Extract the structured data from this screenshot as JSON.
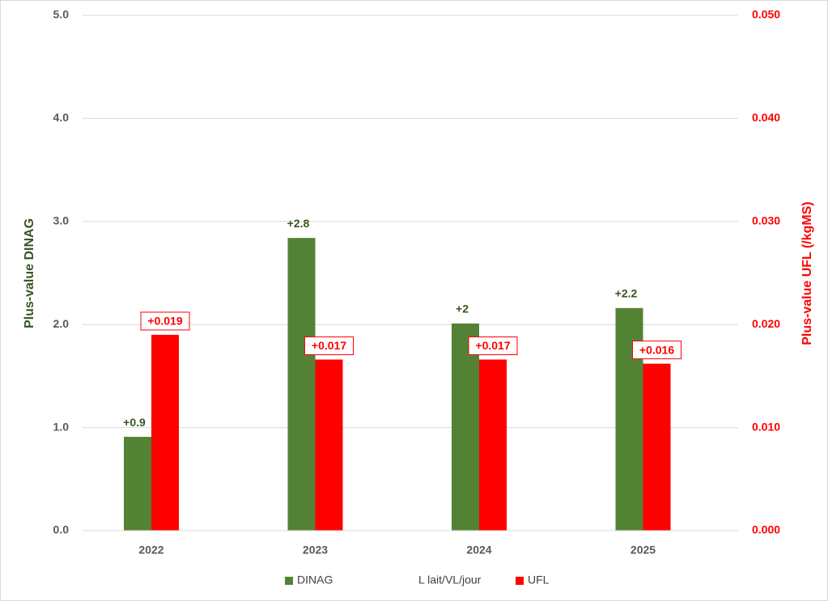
{
  "chart_data": {
    "type": "bar",
    "categories": [
      "2022",
      "2023",
      "2024",
      "2025"
    ],
    "y_label": "Plus-value DINAG",
    "y2_label": "Plus-value UFL (/kgMS)",
    "ylim": [
      0,
      5
    ],
    "yticks": [
      {
        "value": 0,
        "label": "0.0"
      },
      {
        "value": 1,
        "label": "1.0"
      },
      {
        "value": 2,
        "label": "2.0"
      },
      {
        "value": 3,
        "label": "3.0"
      },
      {
        "value": 4,
        "label": "4.0"
      },
      {
        "value": 5,
        "label": "5.0"
      }
    ],
    "y2lim": [
      0,
      0.05
    ],
    "y2ticks": [
      {
        "value": 0,
        "label": "0.000"
      },
      {
        "value": 0.01,
        "label": "0.010"
      },
      {
        "value": 0.02,
        "label": "0.020"
      },
      {
        "value": 0.03,
        "label": "0.030"
      },
      {
        "value": 0.04,
        "label": "0.040"
      },
      {
        "value": 0.05,
        "label": "0.050"
      }
    ],
    "grid": true,
    "legend": "bottom",
    "series": [
      {
        "name": "DINAG",
        "color": "#548235",
        "values": [
          0.91,
          2.84,
          2.01,
          2.16
        ],
        "value_labels": [
          "+0.9",
          "+2.8",
          "+2",
          "+2.2"
        ]
      },
      {
        "name": "L lait/VL/jour",
        "type": "line",
        "values": [
          null,
          null,
          null,
          null
        ]
      },
      {
        "name": "UFL",
        "color": "#ff0000",
        "axis": "y2",
        "values": [
          0.019,
          0.0166,
          0.0166,
          0.0162
        ],
        "value_labels": [
          "+0.019",
          "+0.017",
          "+0.017",
          "+0.016"
        ]
      }
    ]
  }
}
